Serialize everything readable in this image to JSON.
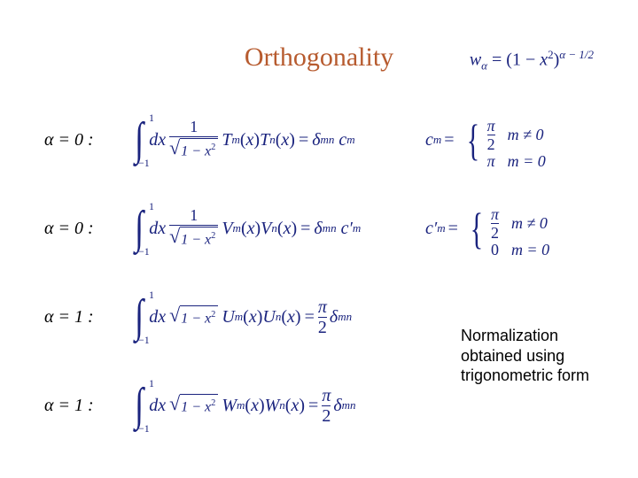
{
  "colors": {
    "title": "#b75b2f",
    "math": "#1a237e",
    "body": "#000000",
    "background": "#ffffff"
  },
  "fonts": {
    "title_family": "Times New Roman",
    "title_size_pt": 30,
    "math_size_pt": 20,
    "note_family": "Arial",
    "note_size_pt": 18
  },
  "title": "Orthogonality",
  "weight_label": "w",
  "weight_sub": "α",
  "weight_rhs_open": "= (1 − ",
  "weight_var": "x",
  "weight_sq": "2",
  "weight_rhs_close": ")",
  "weight_exp": "α − 1/2",
  "labels": {
    "row1": "α = 0 :",
    "row2": "α = 0 :",
    "row3": "α = 1 :",
    "row4": "α = 1 :"
  },
  "int": {
    "ub": "1",
    "lb": "−1",
    "dx": "dx",
    "frac_num": "1",
    "sqrt_arg": "1 − x",
    "sqrt_sq": "2",
    "eq": "=",
    "delta": "δ",
    "mn": "mn",
    "pi": "π",
    "two": "2"
  },
  "funcs": {
    "T": "T",
    "V": "V",
    "U": "U",
    "W": "W",
    "m": "m",
    "n": "n",
    "x": "x"
  },
  "cm": {
    "c": "c",
    "cprime": "c′",
    "m": "m",
    "eq": "=",
    "pi": "π",
    "two": "2",
    "zero": "0",
    "cond_ne": "m ≠ 0",
    "cond_eq": "m = 0"
  },
  "note": {
    "l1": "Normalization",
    "l2": "obtained using",
    "l3": "trigonometric form"
  }
}
